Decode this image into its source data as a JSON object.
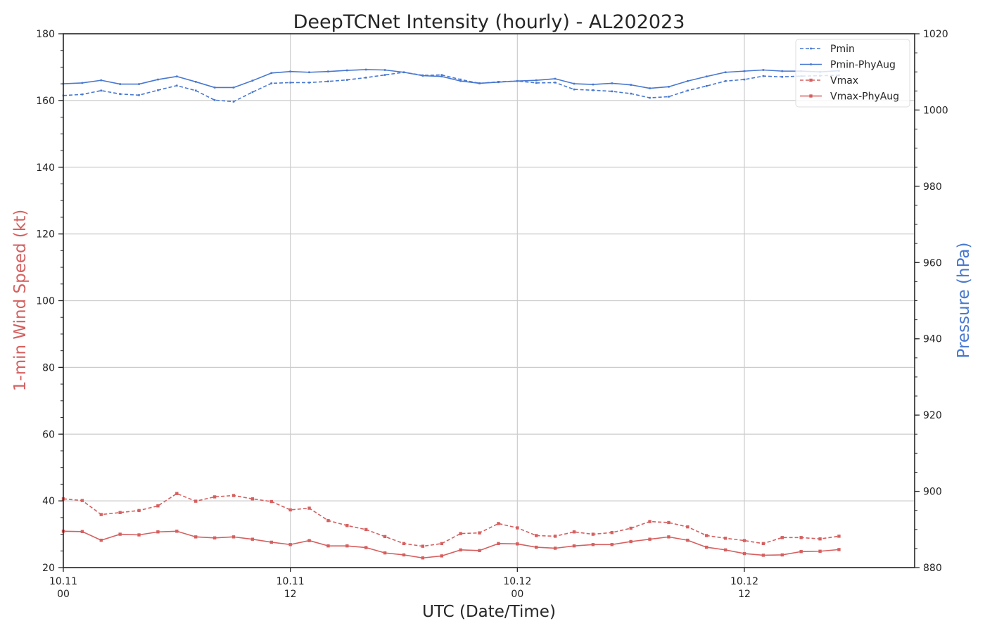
{
  "chart_data": {
    "type": "line",
    "title": "DeepTCNet Intensity (hourly) - AL202023",
    "xlabel": "UTC (Date/Time)",
    "ylabel_left": "1-min Wind Speed (kt)",
    "ylabel_right": "Pressure (hPa)",
    "x_start_hour": 0,
    "x_end_hour": 45,
    "x_ticks": [
      {
        "hour": 0,
        "date": "10.11",
        "time": "00"
      },
      {
        "hour": 12,
        "date": "10.11",
        "time": "12"
      },
      {
        "hour": 24,
        "date": "10.12",
        "time": "00"
      },
      {
        "hour": 36,
        "date": "10.12",
        "time": "12"
      }
    ],
    "ylim_left": [
      20,
      180
    ],
    "yticks_left": [
      "20",
      "40",
      "60",
      "80",
      "100",
      "120",
      "140",
      "160",
      "180"
    ],
    "ylim_right": [
      880,
      1020
    ],
    "yticks_right": [
      "880",
      "900",
      "920",
      "940",
      "960",
      "980",
      "1000",
      "1020"
    ],
    "grid": true,
    "legend_position": "top-right",
    "colors": {
      "wind": "#d65f5f",
      "pressure": "#4878d0",
      "grid": "#cccccc",
      "axis": "#262626"
    },
    "series": [
      {
        "name": "Pmin",
        "axis": "right",
        "style": "dashed",
        "color": "#4878d0",
        "values": [
          1003.8,
          1004.1,
          1005.1,
          1004.2,
          1003.9,
          1005.2,
          1006.4,
          1005.1,
          1002.6,
          1002.2,
          1004.7,
          1007.0,
          1007.2,
          1007.2,
          1007.5,
          1007.9,
          1008.5,
          1009.2,
          1009.9,
          1009.1,
          1009.2,
          1008.0,
          1007.0,
          1007.4,
          1007.6,
          1007.1,
          1007.2,
          1005.4,
          1005.2,
          1004.9,
          1004.3,
          1003.2,
          1003.5,
          1005.1,
          1006.3,
          1007.6,
          1008.0,
          1008.9,
          1008.7,
          1008.9,
          1009.0,
          1009.1
        ]
      },
      {
        "name": "Pmin-PhyAug",
        "axis": "right",
        "style": "solid",
        "color": "#4878d0",
        "values": [
          1006.9,
          1007.1,
          1007.8,
          1006.8,
          1006.8,
          1008.0,
          1008.8,
          1007.4,
          1005.9,
          1005.9,
          1007.7,
          1009.7,
          1010.1,
          1009.9,
          1010.1,
          1010.4,
          1010.6,
          1010.5,
          1009.9,
          1009.0,
          1008.8,
          1007.6,
          1007.0,
          1007.3,
          1007.6,
          1007.8,
          1008.2,
          1006.9,
          1006.7,
          1007.0,
          1006.6,
          1005.7,
          1006.1,
          1007.6,
          1008.8,
          1009.9,
          1010.2,
          1010.5,
          1010.2,
          1010.2,
          1010.0,
          1010.3
        ]
      },
      {
        "name": "Vmax",
        "axis": "left",
        "style": "dashed",
        "color": "#d65f5f",
        "values": [
          40.6,
          40.1,
          35.9,
          36.5,
          37.1,
          38.5,
          42.2,
          39.9,
          41.2,
          41.6,
          40.6,
          39.8,
          37.3,
          37.8,
          34.1,
          32.6,
          31.4,
          29.3,
          27.2,
          26.4,
          27.2,
          30.2,
          30.4,
          33.2,
          31.9,
          29.6,
          29.4,
          30.7,
          30.0,
          30.5,
          31.8,
          33.8,
          33.5,
          32.2,
          29.6,
          28.8,
          28.1,
          27.2,
          29.0,
          29.0,
          28.6,
          29.4
        ]
      },
      {
        "name": "Vmax-PhyAug",
        "axis": "left",
        "style": "solid",
        "color": "#d65f5f",
        "values": [
          30.9,
          30.8,
          28.2,
          30.0,
          29.8,
          30.7,
          30.9,
          29.2,
          28.9,
          29.2,
          28.5,
          27.6,
          26.9,
          28.1,
          26.5,
          26.5,
          26.0,
          24.4,
          23.8,
          22.9,
          23.5,
          25.3,
          25.1,
          27.2,
          27.1,
          26.1,
          25.8,
          26.5,
          26.9,
          26.9,
          27.8,
          28.5,
          29.2,
          28.2,
          26.1,
          25.3,
          24.2,
          23.7,
          23.8,
          24.8,
          24.9,
          25.4
        ]
      }
    ]
  }
}
